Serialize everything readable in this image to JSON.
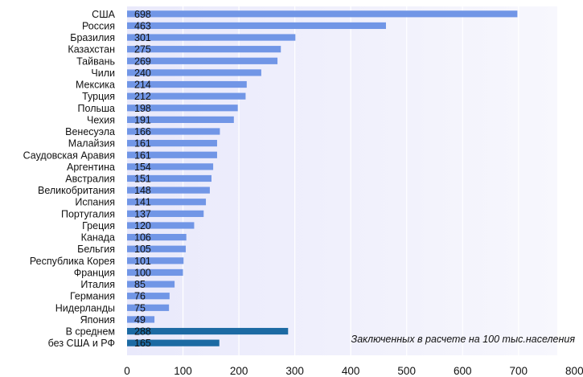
{
  "chart_data": {
    "type": "bar",
    "orientation": "horizontal",
    "categories": [
      "США",
      "Россия",
      "Бразилия",
      "Казахстан",
      "Тайвань",
      "Чили",
      "Мексика",
      "Турция",
      "Польша",
      "Чехия",
      "Венесуэла",
      "Малайзия",
      "Саудовская Аравия",
      "Аргентина",
      "Австралия",
      "Великобритания",
      "Испания",
      "Португалия",
      "Греция",
      "Канада",
      "Бельгия",
      "Республика Корея",
      "Франция",
      "Италия",
      "Германия",
      "Нидерланды",
      "Япония",
      "В среднем",
      "без США и РФ"
    ],
    "values": [
      698,
      463,
      301,
      275,
      269,
      240,
      214,
      212,
      198,
      191,
      166,
      161,
      161,
      154,
      151,
      148,
      141,
      137,
      120,
      106,
      105,
      101,
      100,
      85,
      76,
      75,
      49,
      288,
      165
    ],
    "value_labels": [
      "698",
      "463",
      "301",
      "275",
      "269",
      "240",
      "214",
      "212",
      "198",
      "191",
      "166",
      "161",
      "161",
      "154",
      "151",
      "148",
      "141",
      "137",
      "120",
      "106",
      "105",
      "101",
      "100",
      "85",
      "76",
      "75",
      "49",
      "288",
      "165"
    ],
    "highlighted": [
      false,
      false,
      false,
      false,
      false,
      false,
      false,
      false,
      false,
      false,
      false,
      false,
      false,
      false,
      false,
      false,
      false,
      false,
      false,
      false,
      false,
      false,
      false,
      false,
      false,
      false,
      false,
      true,
      true
    ],
    "xticks": [
      "0",
      "100",
      "200",
      "300",
      "400",
      "500",
      "600",
      "700",
      "800"
    ],
    "xlim": [
      0,
      800
    ],
    "annotation": "Заключенных в расчете на 100 тыс.населения",
    "title": "",
    "xlabel": "",
    "ylabel": "",
    "grid": "vertical",
    "legend": "none"
  },
  "colors": {
    "bar": "#7196e6",
    "bar_highlight": "#1c6aa3",
    "plot_bg_left": "#e9e9fb",
    "plot_bg_right": "#f7f7fd",
    "grid": "#ffffff"
  }
}
